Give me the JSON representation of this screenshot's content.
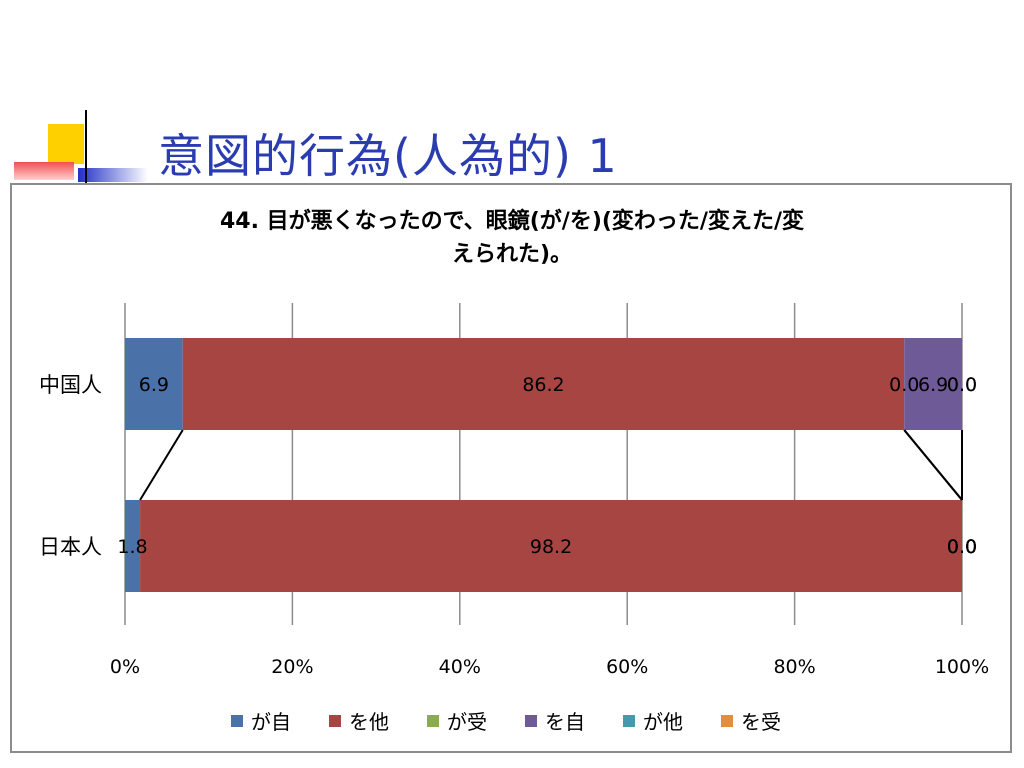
{
  "slide": {
    "title": "意図的行為(人為的) 1"
  },
  "chart_data": {
    "type": "bar",
    "orientation": "horizontal",
    "stacked": "percent",
    "title": "44. 目が悪くなったので、眼鏡(が/を)(変わった/変えた/変えられた)。",
    "title_lines": [
      "44. 目が悪くなったので、眼鏡(が/を)(変わった/変えた/変",
      "えられた)。"
    ],
    "categories": [
      "中国人",
      "日本人"
    ],
    "series": [
      {
        "name": "が自",
        "color": "#4a72a8",
        "values": [
          6.9,
          1.8
        ]
      },
      {
        "name": "を他",
        "color": "#a64542",
        "values": [
          86.2,
          98.2
        ]
      },
      {
        "name": "が受",
        "color": "#8aac4a",
        "values": [
          0.0,
          0.0
        ]
      },
      {
        "name": "を自",
        "color": "#6e5a96",
        "values": [
          6.9,
          0.0
        ]
      },
      {
        "name": "が他",
        "color": "#4499b0",
        "values": [
          0.0,
          0.0
        ]
      },
      {
        "name": "を受",
        "color": "#e38e3e",
        "values": [
          0.0,
          0.0
        ]
      }
    ],
    "data_labels": [
      [
        "6.9",
        "86.2",
        "0.0",
        "6.9",
        "0.0",
        "0.0"
      ],
      [
        "1.8",
        "98.2",
        "0.0",
        "0.0",
        "0.0",
        "0.0"
      ]
    ],
    "x_ticks": [
      "0%",
      "20%",
      "40%",
      "60%",
      "80%",
      "100%"
    ],
    "xlim": [
      0,
      100
    ],
    "grid": true,
    "legend_position": "bottom",
    "series_lines": true
  }
}
